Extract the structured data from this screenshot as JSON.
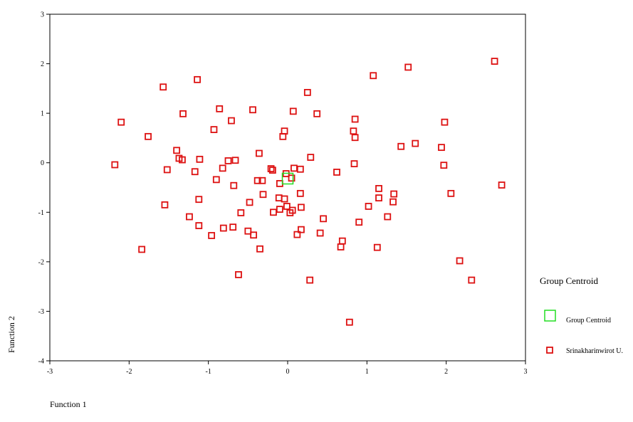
{
  "chart_data": {
    "type": "scatter",
    "xlabel": "Function 1",
    "ylabel": "Function 2",
    "xlim": [
      -3,
      3
    ],
    "ylim": [
      -4,
      3
    ],
    "xticks": [
      "-3",
      "-2",
      "-1",
      "0",
      "1",
      "2",
      "3"
    ],
    "yticks": [
      "-4",
      "-3",
      "-2",
      "-1",
      "0",
      "1",
      "2",
      "3"
    ],
    "grid": false,
    "legend": {
      "title": "Group Centroid",
      "placement": "right",
      "items": [
        {
          "label": "Group Centroid",
          "color": "#22dd22",
          "marker": "hollow-square-large"
        },
        {
          "label": "Srinakharinwirot U.",
          "color": "#dd1111",
          "marker": "hollow-square"
        }
      ]
    },
    "series": [
      {
        "name": "Srinakharinwirot U.",
        "color": "#dd1111",
        "x": [
          2.61,
          1.52,
          1.08,
          -1.14,
          -1.57,
          0.25,
          -0.44,
          -0.86,
          -1.32,
          0.07,
          0.37,
          0.85,
          -0.71,
          1.98,
          -0.93,
          0.83,
          -0.04,
          -1.76,
          -0.06,
          0.85,
          1.61,
          1.43,
          1.94,
          -1.4,
          -0.36,
          -1.37,
          -1.11,
          0.29,
          -1.33,
          -0.66,
          -0.75,
          -1.52,
          -0.82,
          -2.18,
          0.62,
          0.84,
          -1.17,
          1.97,
          -0.21,
          0.16,
          0.08,
          -0.19,
          -0.02,
          -0.38,
          -0.32,
          0.05,
          -0.1,
          -0.9,
          -0.68,
          2.7,
          1.15,
          -0.31,
          0.16,
          2.06,
          -1.12,
          -0.11,
          1.34,
          1.15,
          -0.04,
          1.33,
          -0.01,
          -1.55,
          1.02,
          0.17,
          -1.24,
          -0.18,
          -0.59,
          1.26,
          0.45,
          -0.48,
          0.9,
          -1.12,
          -0.81,
          0.17,
          -0.69,
          0.41,
          -0.5,
          0.12,
          -0.96,
          0.69,
          -0.43,
          -0.35,
          1.13,
          -1.84,
          0.67,
          2.17,
          -0.62,
          2.32,
          0.28,
          0.78,
          -2.1,
          0.06,
          -0.1,
          0.03
        ],
        "y": [
          2.05,
          1.93,
          1.76,
          1.68,
          1.53,
          1.42,
          1.07,
          1.09,
          0.99,
          1.04,
          0.99,
          0.88,
          0.85,
          0.82,
          0.67,
          0.64,
          0.64,
          0.53,
          0.53,
          0.51,
          0.39,
          0.33,
          0.31,
          0.25,
          0.19,
          0.09,
          0.07,
          0.11,
          0.06,
          0.05,
          0.04,
          -0.14,
          -0.11,
          -0.04,
          -0.19,
          -0.02,
          -0.18,
          -0.05,
          -0.12,
          -0.13,
          -0.11,
          -0.15,
          -0.22,
          -0.36,
          -0.36,
          -0.31,
          -0.42,
          -0.34,
          -0.46,
          -0.45,
          -0.52,
          -0.64,
          -0.62,
          -0.62,
          -0.74,
          -0.71,
          -0.63,
          -0.71,
          -0.73,
          -0.79,
          -0.88,
          -0.85,
          -0.88,
          -0.9,
          -1.09,
          -1.0,
          -1.01,
          -1.09,
          -1.13,
          -0.8,
          -1.2,
          -1.27,
          -1.32,
          -1.35,
          -1.3,
          -1.42,
          -1.38,
          -1.45,
          -1.47,
          -1.58,
          -1.46,
          -1.74,
          -1.71,
          -1.75,
          -1.7,
          -1.98,
          -2.26,
          -2.37,
          -2.37,
          -3.22,
          0.82,
          -0.96,
          -0.94,
          -1.01
        ]
      },
      {
        "name": "Group Centroid",
        "color": "#22dd22",
        "x": [
          0.0
        ],
        "y": [
          -0.32
        ]
      }
    ]
  }
}
